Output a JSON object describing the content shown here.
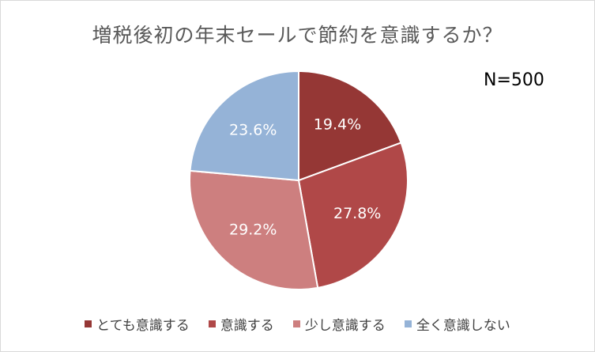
{
  "chart_data": {
    "type": "pie",
    "title": "増税後初の年末セールで節約を意識するか？",
    "note": "N=500",
    "start_angle_deg": 0,
    "direction": "clockwise",
    "legend_position": "bottom",
    "slices": [
      {
        "label": "とても意識する",
        "value": 19.4,
        "value_label": "19.4%",
        "color": "#953735"
      },
      {
        "label": "意識する",
        "value": 27.8,
        "value_label": "27.8%",
        "color": "#b04848"
      },
      {
        "label": "少し意識する",
        "value": 29.2,
        "value_label": "29.2%",
        "color": "#cd7f7f"
      },
      {
        "label": "全く意識しない",
        "value": 23.6,
        "value_label": "23.6%",
        "color": "#95b3d7"
      }
    ]
  }
}
